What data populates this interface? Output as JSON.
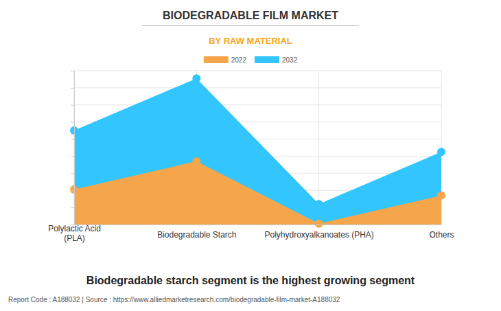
{
  "chart_data": {
    "type": "area",
    "title": "BIODEGRADABLE FILM MARKET",
    "subtitle": "BY RAW MATERIAL",
    "categories": [
      "Polylactic Acid (PLA)",
      "Biodegradable Starch",
      "Polyhydroxyalkanoates (PHA)",
      "Others"
    ],
    "series": [
      {
        "name": "2022",
        "color": "#f5a54a",
        "marker": "circle",
        "values": [
          2.05,
          3.7,
          0.05,
          1.7
        ]
      },
      {
        "name": "2032",
        "color": "#33c5fd",
        "marker": "circle",
        "values": [
          5.5,
          8.55,
          1.2,
          4.25
        ]
      }
    ],
    "ylim": [
      0,
      9
    ],
    "yticks": [
      0,
      1,
      2,
      3,
      4,
      5,
      6,
      7,
      8,
      9
    ],
    "grid": true,
    "tick_labels": "x",
    "legend": "top",
    "stacked": false,
    "caption": "Biodegradable starch segment is the highest growing segment",
    "source": "Report Code : A188032 | Source : https://www.alliedmarketresearch.com/biodegradable-film-market-A188032"
  }
}
